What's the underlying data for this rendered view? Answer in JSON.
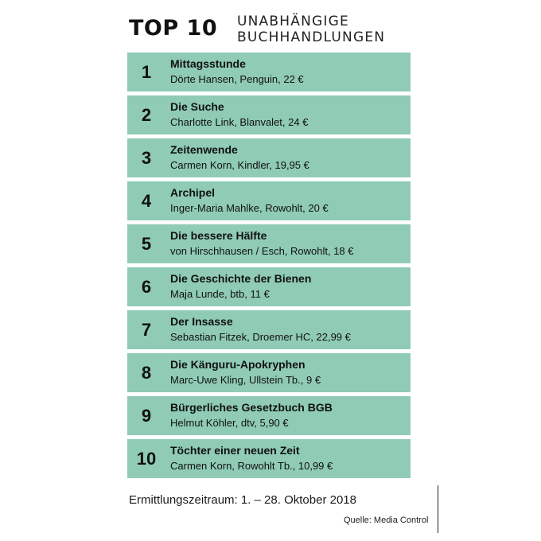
{
  "header": {
    "title": "TOP 10",
    "subtitle_line1": "UNABHÄNGIGE",
    "subtitle_line2": "BUCHHANDLUNGEN"
  },
  "colors": {
    "row_bg": "#8fcbb5"
  },
  "books": [
    {
      "rank": "1",
      "title": "Mittagsstunde",
      "meta": "Dörte Hansen, Penguin, 22 €"
    },
    {
      "rank": "2",
      "title": "Die Suche",
      "meta": "Charlotte Link, Blanvalet, 24 €"
    },
    {
      "rank": "3",
      "title": "Zeitenwende",
      "meta": "Carmen Korn, Kindler, 19,95 €"
    },
    {
      "rank": "4",
      "title": "Archipel",
      "meta": "Inger-Maria Mahlke, Rowohlt, 20 €"
    },
    {
      "rank": "5",
      "title": "Die bessere Hälfte",
      "meta": "von Hirschhausen / Esch, Rowohlt, 18 €"
    },
    {
      "rank": "6",
      "title": "Die Geschichte der Bienen",
      "meta": "Maja Lunde, btb, 11 €"
    },
    {
      "rank": "7",
      "title": "Der Insasse",
      "meta": "Sebastian Fitzek, Droemer HC, 22,99 €"
    },
    {
      "rank": "8",
      "title": "Die Känguru-Apokryphen",
      "meta": "Marc-Uwe Kling, Ullstein Tb., 9 €"
    },
    {
      "rank": "9",
      "title": "Bürgerliches Gesetzbuch BGB",
      "meta": "Helmut Köhler, dtv, 5,90 €"
    },
    {
      "rank": "10",
      "title": "Töchter einer neuen Zeit",
      "meta": "Carmen Korn, Rowohlt Tb., 10,99 €"
    }
  ],
  "footer": {
    "period": "Ermittlungszeitraum: 1. – 28. Oktober 2018",
    "source": "Quelle: Media Control"
  }
}
